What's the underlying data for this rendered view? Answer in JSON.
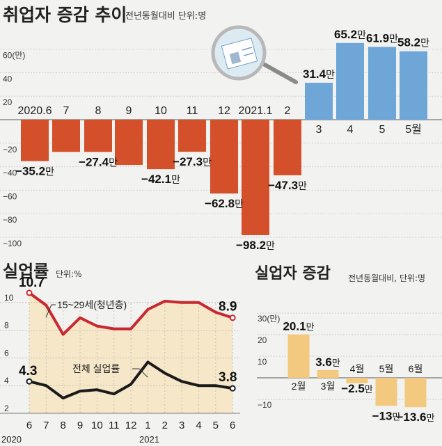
{
  "chart_data": [
    {
      "id": "employment",
      "type": "bar",
      "title": "취업자 증감 추이",
      "subtitle": "전년동월대비 단위:명",
      "y_top_tick_label": "60(만)",
      "ylim": [
        -110,
        75
      ],
      "yticks": [
        -100,
        -80,
        -60,
        -40,
        -20,
        20,
        40,
        60
      ],
      "categories": [
        "2020.6",
        "7",
        "8",
        "9",
        "10",
        "11",
        "12",
        "2021.1",
        "2",
        "3",
        "4",
        "5",
        "5월"
      ],
      "values": [
        -35.2,
        -27.4,
        -27.4,
        -38.5,
        -42.1,
        -27.3,
        -62.8,
        -98.2,
        -47.3,
        31.4,
        65.2,
        61.9,
        58.2
      ],
      "labels": [
        "-35.2",
        "",
        "-27.4",
        "",
        "-42.1",
        "-27.3",
        "-62.8",
        "-98.2",
        "-47.3",
        "31.4",
        "65.2",
        "61.9",
        "58.2"
      ],
      "label_unit": "만",
      "colors": {
        "negative": "#d4502a",
        "positive": "#6fa6d8"
      }
    },
    {
      "id": "unemployment_rate",
      "type": "line",
      "title": "실업률",
      "subtitle": "단위:%",
      "ylim": [
        2,
        11
      ],
      "yticks": [
        2,
        4,
        6,
        8,
        10
      ],
      "x_ticks": [
        "6",
        "7",
        "8",
        "9",
        "10",
        "11",
        "12",
        "1",
        "2",
        "3",
        "4",
        "5",
        "6"
      ],
      "x_year_labels": [
        "2020",
        "2021"
      ],
      "series": [
        {
          "name": "15~29세(청년층)",
          "values": [
            10.7,
            9.8,
            7.7,
            8.9,
            8.3,
            8.1,
            8.1,
            9.5,
            10.1,
            10.0,
            10.0,
            9.3,
            8.9
          ],
          "start_label": "10.7",
          "end_label": "8.9",
          "color": "#c8282f"
        },
        {
          "name": "전체 실업률",
          "values": [
            4.3,
            4.0,
            3.1,
            3.6,
            3.7,
            3.4,
            4.1,
            5.7,
            4.9,
            4.3,
            4.0,
            4.0,
            3.8
          ],
          "start_label": "4.3",
          "end_label": "3.8",
          "color": "#1a1a1a"
        }
      ],
      "area_color": "#f5e7c8"
    },
    {
      "id": "unemployed",
      "type": "bar",
      "title": "실업자 증감",
      "subtitle": "전년동월대비, 단위:명",
      "y_top_tick_label": "30(만)",
      "ylim": [
        -17,
        30
      ],
      "yticks": [
        -10,
        10,
        20
      ],
      "categories": [
        "2월",
        "3월",
        "4월",
        "5월",
        "6월"
      ],
      "values": [
        20.1,
        3.6,
        -2.5,
        -13,
        -13.6
      ],
      "labels": [
        "20.1",
        "3.6",
        "-2.5",
        "-13",
        "-13.6"
      ],
      "label_unit": "만",
      "colors": {
        "bar": "#f2c97e"
      }
    }
  ]
}
